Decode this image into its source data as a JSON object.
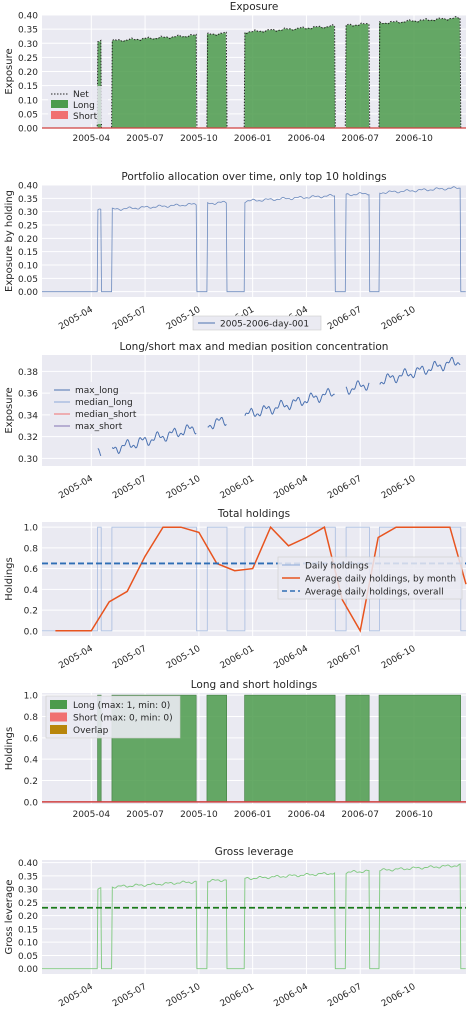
{
  "date_ticks": [
    "2005-04",
    "2005-07",
    "2005-10",
    "2006-01",
    "2006-04",
    "2006-07",
    "2006-10"
  ],
  "tick_months": [
    3,
    6,
    9,
    12,
    15,
    18,
    21
  ],
  "x_range_months": [
    0.25,
    23.9
  ],
  "on_segments": [
    [
      3.35,
      3.55
    ],
    [
      4.15,
      8.85
    ],
    [
      9.45,
      10.55
    ],
    [
      11.55,
      16.6
    ],
    [
      17.2,
      18.5
    ],
    [
      19.05,
      23.6
    ]
  ],
  "chart_data": [
    {
      "id": "exposure",
      "type": "area",
      "title": "Exposure",
      "ylabel": "Exposure",
      "ylim": [
        0,
        0.4
      ],
      "yticks": [
        "0.00",
        "0.05",
        "0.10",
        "0.15",
        "0.20",
        "0.25",
        "0.30",
        "0.35",
        "0.40"
      ],
      "xtick_rotation": 0,
      "legend": {
        "placement": "bottom-left",
        "entries": [
          "Net",
          "Long",
          "Short"
        ]
      },
      "series": [
        {
          "name": "Net",
          "style": "dotted",
          "color": "#262626",
          "start": 0.305,
          "end": 0.39
        },
        {
          "name": "Long",
          "style": "fill",
          "color": "#4c9b4c",
          "start": 0.305,
          "end": 0.39
        },
        {
          "name": "Short",
          "style": "fill",
          "color": "#f07070",
          "value": 0.0
        }
      ]
    },
    {
      "id": "allocation",
      "type": "line",
      "title": "Portfolio allocation over time, only top 10 holdings",
      "ylabel": "Exposure by holding",
      "ylim": [
        -0.02,
        0.4
      ],
      "yticks": [
        "0.00",
        "0.05",
        "0.10",
        "0.15",
        "0.20",
        "0.25",
        "0.30",
        "0.35",
        "0.40"
      ],
      "xtick_rotation": 30,
      "legend": {
        "placement": "below",
        "entries": [
          "2005-2006-day-001"
        ]
      },
      "series": [
        {
          "name": "2005-2006-day-001",
          "color": "#4c72b0",
          "start": 0.305,
          "end": 0.39
        }
      ]
    },
    {
      "id": "concentration",
      "type": "line",
      "title": "Long/short max and median position concentration",
      "ylabel": "Exposure",
      "ylim": [
        0.293,
        0.395
      ],
      "yticks": [
        "0.30",
        "0.32",
        "0.34",
        "0.36",
        "0.38"
      ],
      "xtick_rotation": 30,
      "legend": {
        "placement": "center-left",
        "entries": [
          "max_long",
          "median_long",
          "median_short",
          "max_short"
        ]
      },
      "series": [
        {
          "name": "max_long",
          "color": "#4c72b0",
          "start": 0.305,
          "end": 0.39
        },
        {
          "name": "median_long",
          "color": "#8ca8d8",
          "start": 0.305,
          "end": 0.39
        },
        {
          "name": "median_short",
          "color": "#f07070",
          "value": null
        },
        {
          "name": "max_short",
          "color": "#8172b2",
          "value": null
        }
      ]
    },
    {
      "id": "total_holdings",
      "type": "line",
      "title": "Total holdings",
      "ylabel": "Holdings",
      "ylim": [
        -0.05,
        1.05
      ],
      "yticks": [
        "0.0",
        "0.2",
        "0.4",
        "0.6",
        "0.8",
        "1.0"
      ],
      "xtick_rotation": 30,
      "legend": {
        "placement": "center-right",
        "entries": [
          "Daily holdings",
          "Average daily holdings, by month",
          "Average daily holdings, overall"
        ]
      },
      "overall_average": 0.65,
      "monthly": {
        "x": [
          1.0,
          2.0,
          3.0,
          4.0,
          5.0,
          6.0,
          7.0,
          8.0,
          9.0,
          10.0,
          11.0,
          12.0,
          13.0,
          14.0,
          15.0,
          16.0,
          17.0,
          18.0,
          19.0,
          20.0,
          21.0,
          22.0,
          23.0,
          23.9
        ],
        "values": [
          0.0,
          0.0,
          0.0,
          0.28,
          0.38,
          0.72,
          1.0,
          1.0,
          0.95,
          0.65,
          0.58,
          0.6,
          1.0,
          0.82,
          0.9,
          1.0,
          0.3,
          0.0,
          0.9,
          1.0,
          1.0,
          1.0,
          1.0,
          0.45
        ]
      }
    },
    {
      "id": "long_short_holdings",
      "type": "area",
      "title": "Long and short holdings",
      "ylabel": "Holdings",
      "ylim": [
        -0.02,
        1.02
      ],
      "yticks": [
        "0.0",
        "0.2",
        "0.4",
        "0.6",
        "0.8",
        "1.0"
      ],
      "xtick_rotation": 0,
      "legend": {
        "placement": "top-left",
        "entries": [
          "Long (max: 1, min: 0)",
          "Short (max: 0, min: 0)",
          "Overlap"
        ]
      },
      "series": [
        {
          "name": "Long (max: 1, min: 0)",
          "color": "#4c9b4c",
          "value": 1
        },
        {
          "name": "Short (max: 0, min: 0)",
          "color": "#f07070",
          "value": 0
        },
        {
          "name": "Overlap",
          "color": "#b8860b",
          "value": null
        }
      ]
    },
    {
      "id": "gross_leverage",
      "type": "line",
      "title": "Gross leverage",
      "ylabel": "Gross leverage",
      "ylim": [
        -0.02,
        0.41
      ],
      "yticks": [
        "0.00",
        "0.05",
        "0.10",
        "0.15",
        "0.20",
        "0.25",
        "0.30",
        "0.35",
        "0.40"
      ],
      "xtick_rotation": 30,
      "average": 0.23,
      "series": [
        {
          "name": "",
          "color": "#7fc97f",
          "start": 0.305,
          "end": 0.39
        }
      ]
    }
  ]
}
